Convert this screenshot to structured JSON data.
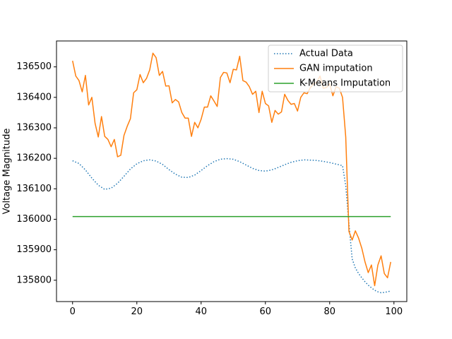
{
  "chart_data": {
    "type": "line",
    "title": "",
    "xlabel": "",
    "ylabel": "Voltage Magnitude",
    "xlim": [
      -5,
      104
    ],
    "ylim": [
      135730,
      136585
    ],
    "xticks": [
      0,
      20,
      40,
      60,
      80,
      100
    ],
    "yticks": [
      135800,
      135900,
      136000,
      136100,
      136200,
      136300,
      136400,
      136500
    ],
    "grid": false,
    "legend_position": "top-right",
    "series": [
      {
        "name": "Actual Data",
        "color": "#1f77b4",
        "style": "dotted",
        "x": [
          0,
          2,
          4,
          6,
          8,
          10,
          12,
          14,
          16,
          18,
          20,
          22,
          24,
          26,
          28,
          30,
          32,
          34,
          36,
          38,
          40,
          42,
          44,
          46,
          48,
          50,
          52,
          54,
          56,
          58,
          60,
          62,
          64,
          66,
          68,
          70,
          72,
          74,
          76,
          78,
          80,
          82,
          84,
          85,
          86,
          87,
          88,
          89,
          90,
          91,
          92,
          93,
          94,
          95,
          96,
          97,
          98,
          99
        ],
        "y": [
          136192,
          136183,
          136162,
          136135,
          136112,
          136098,
          136102,
          136118,
          136141,
          136165,
          136182,
          136192,
          136195,
          136191,
          136180,
          136163,
          136148,
          136138,
          136137,
          136145,
          136160,
          136176,
          136189,
          136197,
          136199,
          136197,
          136189,
          136178,
          136167,
          136160,
          136158,
          136162,
          136170,
          136179,
          136187,
          136192,
          136195,
          136194,
          136193,
          136190,
          136186,
          136181,
          136176,
          136110,
          135985,
          135870,
          135840,
          135822,
          135808,
          135795,
          135784,
          135775,
          135767,
          135762,
          135759,
          135760,
          135762,
          135765
        ]
      },
      {
        "name": "GAN imputation",
        "color": "#ff7f0e",
        "style": "solid",
        "x": [
          0,
          1,
          2,
          3,
          4,
          5,
          6,
          7,
          8,
          9,
          10,
          11,
          12,
          13,
          14,
          15,
          16,
          17,
          18,
          19,
          20,
          21,
          22,
          23,
          24,
          25,
          26,
          27,
          28,
          29,
          30,
          31,
          32,
          33,
          34,
          35,
          36,
          37,
          38,
          39,
          40,
          41,
          42,
          43,
          44,
          45,
          46,
          47,
          48,
          49,
          50,
          51,
          52,
          53,
          54,
          55,
          56,
          57,
          58,
          59,
          60,
          61,
          62,
          63,
          64,
          65,
          66,
          67,
          68,
          69,
          70,
          71,
          72,
          73,
          74,
          75,
          76,
          77,
          78,
          79,
          80,
          81,
          82,
          83,
          84,
          85,
          86,
          87,
          88,
          89,
          90,
          91,
          92,
          93,
          94,
          95,
          96,
          97,
          98,
          99
        ],
        "y": [
          136520,
          136470,
          136455,
          136418,
          136472,
          136375,
          136400,
          136315,
          136270,
          136337,
          136272,
          136262,
          136238,
          136262,
          136205,
          136210,
          136275,
          136305,
          136330,
          136415,
          136425,
          136475,
          136448,
          136462,
          136490,
          136545,
          136530,
          136472,
          136485,
          136437,
          136438,
          136382,
          136393,
          136385,
          136350,
          136332,
          136332,
          136272,
          136318,
          136300,
          136328,
          136368,
          136368,
          136405,
          136388,
          136370,
          136465,
          136482,
          136480,
          136448,
          136492,
          136490,
          136535,
          136455,
          136450,
          136435,
          136410,
          136420,
          136350,
          136420,
          136380,
          136372,
          136318,
          136357,
          136345,
          136352,
          136410,
          136390,
          136377,
          136380,
          136355,
          136400,
          136415,
          136412,
          136432,
          136445,
          136450,
          136470,
          136430,
          136432,
          136445,
          136405,
          136435,
          136430,
          136400,
          136270,
          135960,
          135932,
          135962,
          135938,
          135905,
          135860,
          135825,
          135850,
          135782,
          135850,
          135880,
          135822,
          135808,
          135860
        ]
      },
      {
        "name": "K-Means Imputation",
        "color": "#2ca02c",
        "style": "solid",
        "x": [
          0,
          99
        ],
        "y": [
          136009,
          136009
        ]
      }
    ]
  }
}
